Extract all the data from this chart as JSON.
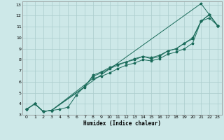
{
  "xlabel": "Humidex (Indice chaleur)",
  "ylabel": "",
  "background_color": "#cde8e8",
  "grid_color": "#aacccc",
  "line_color": "#1a6b5a",
  "xlim": [
    -0.5,
    23.5
  ],
  "ylim": [
    3,
    13.3
  ],
  "xticks": [
    0,
    1,
    2,
    3,
    4,
    5,
    6,
    7,
    8,
    9,
    10,
    11,
    12,
    13,
    14,
    15,
    16,
    17,
    18,
    19,
    20,
    21,
    22,
    23
  ],
  "yticks": [
    3,
    4,
    5,
    6,
    7,
    8,
    9,
    10,
    11,
    12,
    13
  ],
  "lines": [
    {
      "x": [
        0,
        1,
        2,
        3,
        21,
        22,
        23
      ],
      "y": [
        3.5,
        4.0,
        3.3,
        3.4,
        13.1,
        12.1,
        11.1
      ]
    },
    {
      "x": [
        0,
        1,
        2,
        3,
        8,
        9,
        10,
        11,
        12,
        13,
        14,
        15,
        16,
        17,
        18,
        19,
        20,
        21,
        22,
        23
      ],
      "y": [
        3.5,
        4.0,
        3.3,
        3.4,
        6.3,
        6.5,
        6.8,
        7.2,
        7.5,
        7.7,
        8.0,
        7.9,
        8.1,
        8.5,
        8.7,
        9.0,
        9.5,
        11.5,
        11.8,
        11.1
      ]
    },
    {
      "x": [
        0,
        1,
        2,
        3,
        7,
        8,
        9,
        10,
        11,
        12,
        13,
        14,
        15,
        16,
        17,
        18,
        19,
        20,
        21,
        22,
        23
      ],
      "y": [
        3.5,
        4.0,
        3.3,
        3.4,
        5.5,
        6.6,
        6.9,
        7.3,
        7.6,
        7.8,
        8.1,
        8.3,
        8.2,
        8.4,
        8.8,
        9.0,
        9.5,
        10.0,
        11.5,
        12.1,
        11.1
      ]
    },
    {
      "x": [
        0,
        1,
        2,
        3,
        4,
        5,
        6,
        7,
        8,
        9,
        10,
        11,
        12,
        13,
        14,
        15,
        16,
        17,
        18,
        19,
        20,
        21,
        22,
        23
      ],
      "y": [
        3.5,
        4.0,
        3.3,
        3.4,
        3.5,
        3.7,
        4.8,
        5.6,
        6.5,
        6.8,
        7.2,
        7.5,
        7.8,
        8.0,
        8.3,
        8.1,
        8.3,
        8.8,
        9.0,
        9.5,
        9.9,
        11.5,
        12.1,
        11.1
      ]
    }
  ]
}
